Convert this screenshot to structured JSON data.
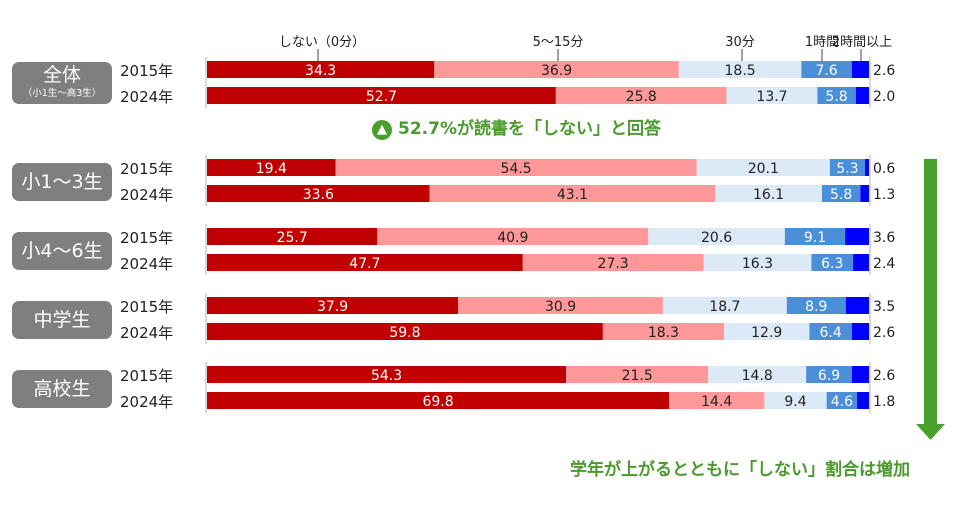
{
  "chart_data": {
    "type": "bar",
    "orientation": "horizontal",
    "stacked": true,
    "unit": "%",
    "legend": [
      "しない（0分）",
      "5～15分",
      "30分",
      "1時間",
      "2時間以上"
    ],
    "legend_placement": "top",
    "colors": [
      "#c00000",
      "#ff9999",
      "#dce9f6",
      "#4a8fd8",
      "#0000ff"
    ],
    "groups": [
      {
        "label": "全体",
        "sublabel": "（小1生～高3生）",
        "rows": [
          {
            "year": "2015年",
            "values": [
              34.3,
              36.9,
              18.5,
              7.6,
              2.6
            ]
          },
          {
            "year": "2024年",
            "values": [
              52.7,
              25.8,
              13.7,
              5.8,
              2.0
            ]
          }
        ]
      },
      {
        "label": "小1～3生",
        "rows": [
          {
            "year": "2015年",
            "values": [
              19.4,
              54.5,
              20.1,
              5.3,
              0.6
            ]
          },
          {
            "year": "2024年",
            "values": [
              33.6,
              43.1,
              16.1,
              5.8,
              1.3
            ]
          }
        ]
      },
      {
        "label": "小4～6生",
        "rows": [
          {
            "year": "2015年",
            "values": [
              25.7,
              40.9,
              20.6,
              9.1,
              3.6
            ]
          },
          {
            "year": "2024年",
            "values": [
              47.7,
              27.3,
              16.3,
              6.3,
              2.4
            ]
          }
        ]
      },
      {
        "label": "中学生",
        "rows": [
          {
            "year": "2015年",
            "values": [
              37.9,
              30.9,
              18.7,
              8.9,
              3.5
            ]
          },
          {
            "year": "2024年",
            "values": [
              59.8,
              18.3,
              12.9,
              6.4,
              2.6
            ]
          }
        ]
      },
      {
        "label": "高校生",
        "rows": [
          {
            "year": "2015年",
            "values": [
              54.3,
              21.5,
              14.8,
              6.9,
              2.6
            ]
          },
          {
            "year": "2024年",
            "values": [
              69.8,
              14.4,
              9.4,
              4.6,
              1.8
            ]
          }
        ]
      }
    ],
    "value_labels": [
      "34.3",
      "36.9",
      "18.5",
      "7.6",
      "2.6",
      "52.7",
      "25.8",
      "13.7",
      "5.8",
      "2.0",
      "19.4",
      "54.5",
      "20.1",
      "5.3",
      "0.6",
      "33.6",
      "43.1",
      "16.1",
      "5.8",
      "1.3",
      "25.7",
      "40.9",
      "20.6",
      "9.1",
      "3.6",
      "47.7",
      "27.3",
      "16.3",
      "6.3",
      "2.4",
      "37.9",
      "30.9",
      "18.7",
      "8.9",
      "3.5",
      "59.8",
      "18.3",
      "12.9",
      "6.4",
      "2.6",
      "54.3",
      "21.5",
      "14.8",
      "6.9",
      "2.6",
      "69.8",
      "14.4",
      "9.4",
      "4.6",
      "1.8"
    ]
  },
  "annotations": {
    "highlight": "52.7%が読書を「しない」と回答",
    "highlight_icon": "up-arrow-circle-icon",
    "trend": "学年が上がるとともに「しない」割合は増加",
    "trend_icon": "down-arrow-icon",
    "accent_color": "#4aa02c"
  }
}
